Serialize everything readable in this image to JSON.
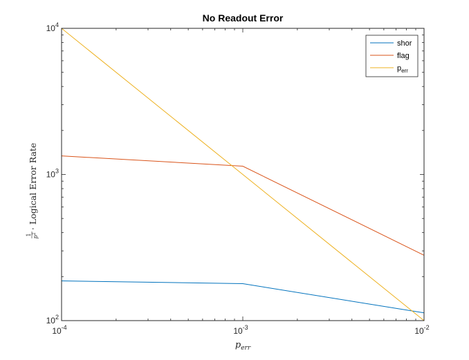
{
  "chart_data": {
    "type": "line",
    "title": "No Readout Error",
    "xlabel": "p",
    "xlabel_sub": "err",
    "ylabel": {
      "frac_num": "1",
      "frac_den": "p",
      "frac_den_sup": "2",
      "text": "· Logical Error Rate"
    },
    "xscale": "log",
    "yscale": "log",
    "xlim": [
      0.0001,
      0.01
    ],
    "ylim": [
      100,
      10000
    ],
    "xticks": [
      {
        "value": 0.0001,
        "base": "10",
        "exp": "-4"
      },
      {
        "value": 0.001,
        "base": "10",
        "exp": "-3"
      },
      {
        "value": 0.01,
        "base": "10",
        "exp": "-2"
      }
    ],
    "yticks": [
      {
        "value": 100,
        "base": "10",
        "exp": "2"
      },
      {
        "value": 1000,
        "base": "10",
        "exp": "3"
      },
      {
        "value": 10000,
        "base": "10",
        "exp": "4"
      }
    ],
    "grid": false,
    "legend_position": "top-right",
    "series": [
      {
        "name": "shor",
        "color": "#0072BD",
        "x": [
          0.0001,
          0.001,
          0.01
        ],
        "y": [
          187,
          179,
          113
        ]
      },
      {
        "name": "flag",
        "color": "#D95319",
        "x": [
          0.0001,
          0.001,
          0.01
        ],
        "y": [
          1340,
          1140,
          280
        ]
      },
      {
        "name": "p",
        "name_sub": "err",
        "color": "#EDB120",
        "x": [
          0.0001,
          0.001,
          0.01
        ],
        "y": [
          10000,
          1000,
          100
        ]
      }
    ]
  }
}
